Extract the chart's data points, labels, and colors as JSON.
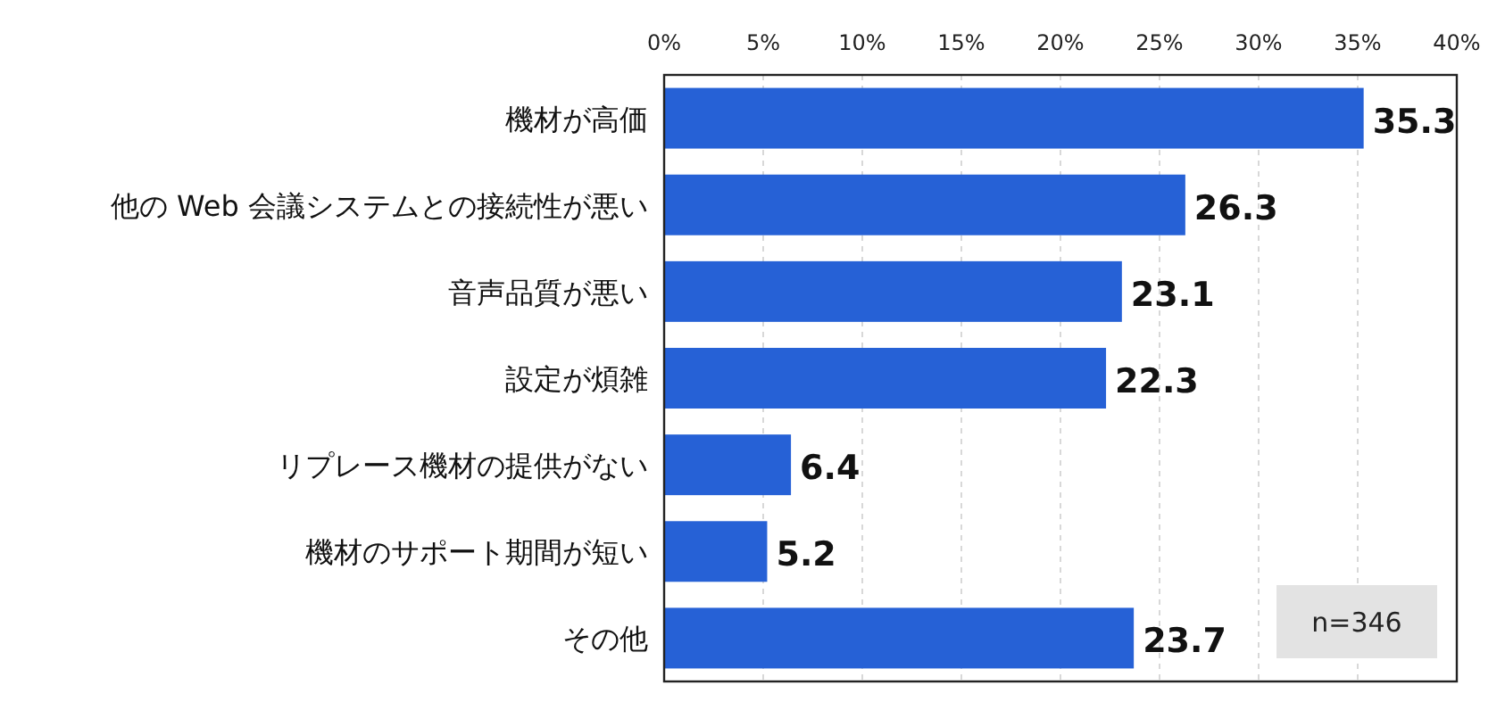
{
  "chart_data": {
    "type": "bar",
    "orientation": "horizontal",
    "categories": [
      "機材が高価",
      "他の Web 会議システムとの接続性が悪い",
      "音声品質が悪い",
      "設定が煩雑",
      "リプレース機材の提供がない",
      "機材のサポート期間が短い",
      "その他"
    ],
    "values": [
      35.3,
      26.3,
      23.1,
      22.3,
      6.4,
      5.2,
      23.7
    ],
    "color": "#2661d6",
    "xlim": [
      0,
      40
    ],
    "xticks": [
      {
        "value": 0,
        "label": "0%"
      },
      {
        "value": 5,
        "label": "5%"
      },
      {
        "value": 10,
        "label": "10%"
      },
      {
        "value": 15,
        "label": "15%"
      },
      {
        "value": 20,
        "label": "20%"
      },
      {
        "value": 25,
        "label": "25%"
      },
      {
        "value": 30,
        "label": "30%"
      },
      {
        "value": 35,
        "label": "35%"
      },
      {
        "value": 40,
        "label": "40%"
      }
    ],
    "grid": "x",
    "data_labels": true,
    "annotations": [
      "n=346"
    ]
  }
}
